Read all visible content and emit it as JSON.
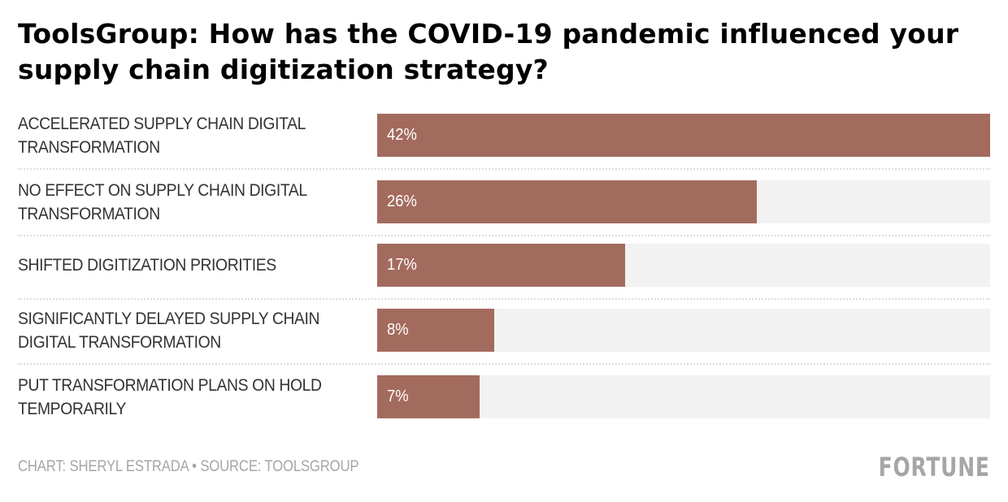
{
  "title": "ToolsGroup: How has the COVID-19 pandemic influenced your supply chain digitization strategy?",
  "footer": {
    "credit": "CHART: SHERYL ESTRADA • SOURCE: TOOLSGROUP",
    "logo": "FORTUNE"
  },
  "colors": {
    "bar": "#a36b5e",
    "track": "#f2f2f2",
    "label_text": "#333333",
    "muted_text": "#a6a6a6"
  },
  "chart_data": {
    "type": "bar",
    "orientation": "horizontal",
    "title": "ToolsGroup: How has the COVID-19 pandemic influenced your supply chain digitization strategy?",
    "xlabel": "",
    "ylabel": "",
    "xlim": [
      0,
      42
    ],
    "grid": false,
    "legend": "none",
    "categories": [
      "ACCELERATED SUPPLY CHAIN DIGITAL TRANSFORMATION",
      "NO EFFECT ON SUPPLY CHAIN DIGITAL TRANSFORMATION",
      "SHIFTED DIGITIZATION PRIORITIES",
      "SIGNIFICANTLY DELAYED SUPPLY CHAIN DIGITAL TRANSFORMATION",
      "PUT TRANSFORMATION PLANS ON HOLD TEMPORARILY"
    ],
    "values": [
      42,
      26,
      17,
      8,
      7
    ],
    "value_labels": [
      "42%",
      "26%",
      "17%",
      "8%",
      "7%"
    ],
    "unit": "%"
  }
}
